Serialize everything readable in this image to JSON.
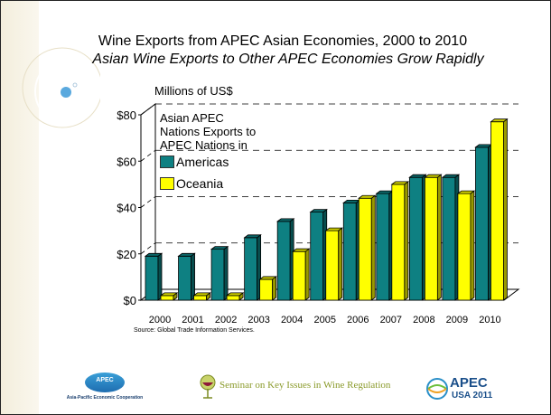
{
  "slide": {
    "title": "Wine Exports from APEC Asian Economies, 2000 to 2010",
    "subtitle": "Asian Wine Exports to Other APEC Economies Grow Rapidly",
    "source": "Source: Global Trade Information Services."
  },
  "chart_data": {
    "type": "bar",
    "title": "Wine Exports from APEC Asian Economies, 2000 to 2010",
    "ylabel": "Millions of US$",
    "xlabel": "",
    "ylim": [
      0,
      80
    ],
    "yticks": [
      "$0",
      "$20",
      "$40",
      "$60",
      "$80"
    ],
    "ytick_values": [
      0,
      20,
      40,
      60,
      80
    ],
    "legend_title": "Asian APEC Nations Exports to APEC Nations in",
    "categories": [
      "2000",
      "2001",
      "2002",
      "2003",
      "2004",
      "2005",
      "2006",
      "2007",
      "2008",
      "2009",
      "2010"
    ],
    "series": [
      {
        "name": "Americas",
        "color": "#0e8082",
        "values": [
          19,
          19,
          22,
          27,
          34,
          38,
          42,
          46,
          53,
          53,
          66
        ]
      },
      {
        "name": "Oceania",
        "color": "#ffff00",
        "values": [
          2,
          2,
          2,
          9,
          21,
          30,
          44,
          50,
          53,
          46,
          77
        ]
      }
    ],
    "grid": "dashed major lines on back wall"
  },
  "logos": {
    "apec_left_mark": "APEC",
    "apec_left_sub": "Asia-Pacific Economic Cooperation",
    "seminar_text": "Seminar on Key Issues in Wine Regulation",
    "apec_right_mark": "APEC",
    "apec_right_sub": "USA 2011"
  },
  "colors": {
    "americas": "#0e8082",
    "oceania": "#ffff00",
    "background_stripe": "#f3eedc"
  },
  "icons": [
    "wine-glass-icon",
    "apec-globe-icon"
  ]
}
